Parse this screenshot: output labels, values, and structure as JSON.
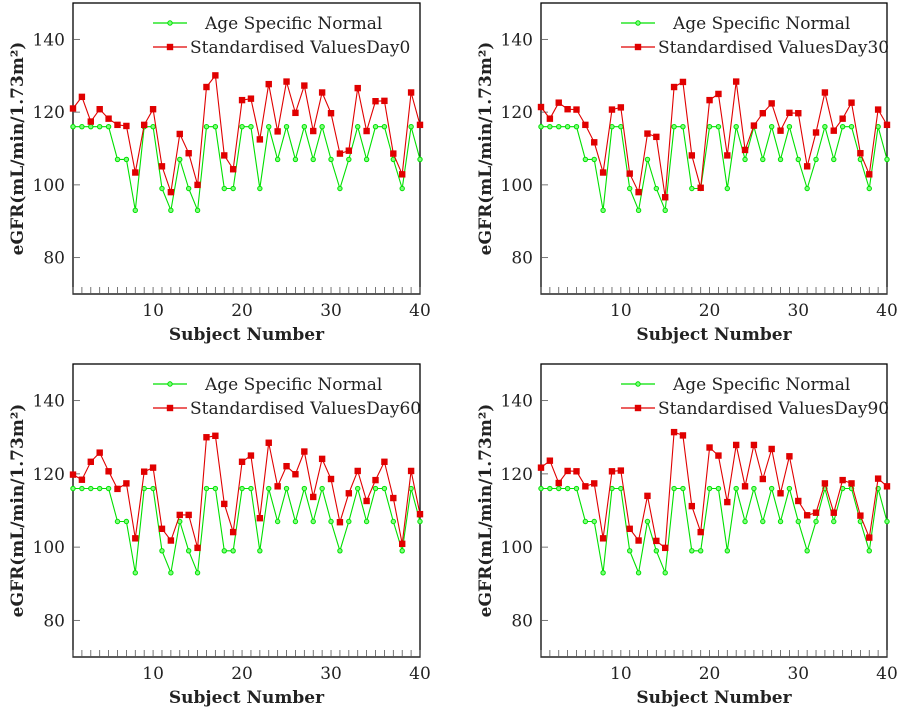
{
  "chart_data": [
    {
      "type": "line",
      "title": "",
      "xlabel": "Subject Number",
      "ylabel": "eGFR(mL/min/1.73m²)",
      "xlim": [
        1,
        40
      ],
      "ylim": [
        70,
        150
      ],
      "xticks": [
        10,
        20,
        30,
        40
      ],
      "yticks": [
        80,
        100,
        120,
        140
      ],
      "grid": false,
      "legend_position": "top-right",
      "x": [
        1,
        2,
        3,
        4,
        5,
        6,
        7,
        8,
        9,
        10,
        11,
        12,
        13,
        14,
        15,
        16,
        17,
        18,
        19,
        20,
        21,
        22,
        23,
        24,
        25,
        26,
        27,
        28,
        29,
        30,
        31,
        32,
        33,
        34,
        35,
        36,
        37,
        38,
        39,
        40
      ],
      "series": [
        {
          "name": "Age Specific Normal",
          "color": "#00e000",
          "marker": "circle",
          "values": [
            116,
            116,
            116,
            116,
            116,
            107,
            107,
            93,
            116,
            116,
            99,
            93,
            107,
            99,
            93,
            116,
            116,
            99,
            99,
            116,
            116,
            99,
            116,
            107,
            116,
            107,
            116,
            107,
            116,
            107,
            99,
            107,
            116,
            107,
            116,
            116,
            107,
            99,
            116,
            107
          ]
        },
        {
          "name": "Standardised ValuesDay0",
          "color": "#e00000",
          "marker": "square",
          "values": [
            121,
            124.2,
            117.4,
            120.8,
            118.2,
            116.5,
            116.2,
            103.4,
            116.5,
            120.8,
            105.1,
            98,
            114,
            108.7,
            100,
            126.9,
            130.1,
            108.1,
            104.3,
            123.3,
            123.7,
            112.5,
            127.7,
            114.7,
            128.4,
            119.8,
            127.3,
            114.8,
            125.4,
            119.7,
            108.6,
            109.4,
            126.6,
            114.8,
            123,
            123.1,
            108.6,
            102.9,
            125.4,
            116.5
          ]
        }
      ]
    },
    {
      "type": "line",
      "title": "",
      "xlabel": "Subject Number",
      "ylabel": "eGFR(mL/min/1.73m²)",
      "xlim": [
        1,
        40
      ],
      "ylim": [
        70,
        150
      ],
      "xticks": [
        10,
        20,
        30,
        40
      ],
      "yticks": [
        80,
        100,
        120,
        140
      ],
      "grid": false,
      "legend_position": "top-right",
      "x": [
        1,
        2,
        3,
        4,
        5,
        6,
        7,
        8,
        9,
        10,
        11,
        12,
        13,
        14,
        15,
        16,
        17,
        18,
        19,
        20,
        21,
        22,
        23,
        24,
        25,
        26,
        27,
        28,
        29,
        30,
        31,
        32,
        33,
        34,
        35,
        36,
        37,
        38,
        39,
        40
      ],
      "series": [
        {
          "name": "Age Specific Normal",
          "color": "#00e000",
          "marker": "circle",
          "values": [
            116,
            116,
            116,
            116,
            116,
            107,
            107,
            93,
            116,
            116,
            99,
            93,
            107,
            99,
            93,
            116,
            116,
            99,
            99,
            116,
            116,
            99,
            116,
            107,
            116,
            107,
            116,
            107,
            116,
            107,
            99,
            107,
            116,
            107,
            116,
            116,
            107,
            99,
            116,
            107
          ]
        },
        {
          "name": "Standardised ValuesDay30",
          "color": "#e00000",
          "marker": "square",
          "values": [
            121.4,
            118.2,
            122.6,
            120.8,
            120.7,
            116.5,
            111.7,
            103.4,
            120.7,
            121.3,
            103.1,
            98,
            114.1,
            113.2,
            96.6,
            126.9,
            128.3,
            108.1,
            99.2,
            123.3,
            125,
            108.1,
            128.4,
            109.6,
            116.3,
            119.7,
            122.4,
            114.9,
            119.8,
            119.7,
            105.1,
            114.4,
            125.4,
            114.9,
            118.2,
            122.6,
            108.7,
            102.9,
            120.7,
            116.5
          ]
        }
      ]
    },
    {
      "type": "line",
      "title": "",
      "xlabel": "Subject Number",
      "ylabel": "eGFR(mL/min/1.73m²)",
      "xlim": [
        1,
        40
      ],
      "ylim": [
        70,
        150
      ],
      "xticks": [
        10,
        20,
        30,
        40
      ],
      "yticks": [
        80,
        100,
        120,
        140
      ],
      "grid": false,
      "legend_position": "top-right",
      "x": [
        1,
        2,
        3,
        4,
        5,
        6,
        7,
        8,
        9,
        10,
        11,
        12,
        13,
        14,
        15,
        16,
        17,
        18,
        19,
        20,
        21,
        22,
        23,
        24,
        25,
        26,
        27,
        28,
        29,
        30,
        31,
        32,
        33,
        34,
        35,
        36,
        37,
        38,
        39,
        40
      ],
      "series": [
        {
          "name": "Age Specific Normal",
          "color": "#00e000",
          "marker": "circle",
          "values": [
            116,
            116,
            116,
            116,
            116,
            107,
            107,
            93,
            116,
            116,
            99,
            93,
            107,
            99,
            93,
            116,
            116,
            99,
            99,
            116,
            116,
            99,
            116,
            107,
            116,
            107,
            116,
            107,
            116,
            107,
            99,
            107,
            116,
            107,
            116,
            116,
            107,
            99,
            116,
            107
          ]
        },
        {
          "name": "Standardised ValuesDay60",
          "color": "#e00000",
          "marker": "square",
          "values": [
            119.8,
            118.4,
            123.3,
            125.8,
            120.7,
            115.9,
            117.4,
            102.4,
            120.6,
            121.7,
            105,
            101.8,
            108.8,
            108.8,
            99.8,
            130,
            130.4,
            111.8,
            104.1,
            123.3,
            125,
            107.9,
            128.5,
            116.6,
            122.1,
            119.9,
            126.1,
            113.7,
            124.1,
            118.6,
            106.8,
            114.7,
            120.8,
            112.6,
            118.3,
            123.3,
            113.4,
            100.9,
            120.8,
            109
          ]
        }
      ]
    },
    {
      "type": "line",
      "title": "",
      "xlabel": "Subject Number",
      "ylabel": "eGFR(mL/min/1.73m²)",
      "xlim": [
        1,
        40
      ],
      "ylim": [
        70,
        150
      ],
      "xticks": [
        10,
        20,
        30,
        40
      ],
      "yticks": [
        80,
        100,
        120,
        140
      ],
      "grid": false,
      "legend_position": "top-right",
      "x": [
        1,
        2,
        3,
        4,
        5,
        6,
        7,
        8,
        9,
        10,
        11,
        12,
        13,
        14,
        15,
        16,
        17,
        18,
        19,
        20,
        21,
        22,
        23,
        24,
        25,
        26,
        27,
        28,
        29,
        30,
        31,
        32,
        33,
        34,
        35,
        36,
        37,
        38,
        39,
        40
      ],
      "series": [
        {
          "name": "Age Specific Normal",
          "color": "#00e000",
          "marker": "circle",
          "values": [
            116,
            116,
            116,
            116,
            116,
            107,
            107,
            93,
            116,
            116,
            99,
            93,
            107,
            99,
            93,
            116,
            116,
            99,
            99,
            116,
            116,
            99,
            116,
            107,
            116,
            107,
            116,
            107,
            116,
            107,
            99,
            107,
            116,
            107,
            116,
            116,
            107,
            99,
            116,
            107
          ]
        },
        {
          "name": "Standardised ValuesDay90",
          "color": "#e00000",
          "marker": "square",
          "values": [
            121.7,
            123.6,
            117.5,
            120.8,
            120.7,
            116.6,
            117.4,
            102.4,
            120.7,
            120.9,
            105,
            101.8,
            114,
            101.7,
            99.8,
            131.4,
            130.5,
            111.2,
            104.1,
            127.2,
            125,
            112.3,
            127.9,
            116.6,
            127.9,
            118.6,
            126.8,
            114.7,
            124.8,
            112.6,
            108.7,
            109.4,
            117.4,
            109.4,
            118.3,
            117.4,
            108.6,
            102.6,
            118.7,
            116.6
          ]
        }
      ]
    }
  ]
}
